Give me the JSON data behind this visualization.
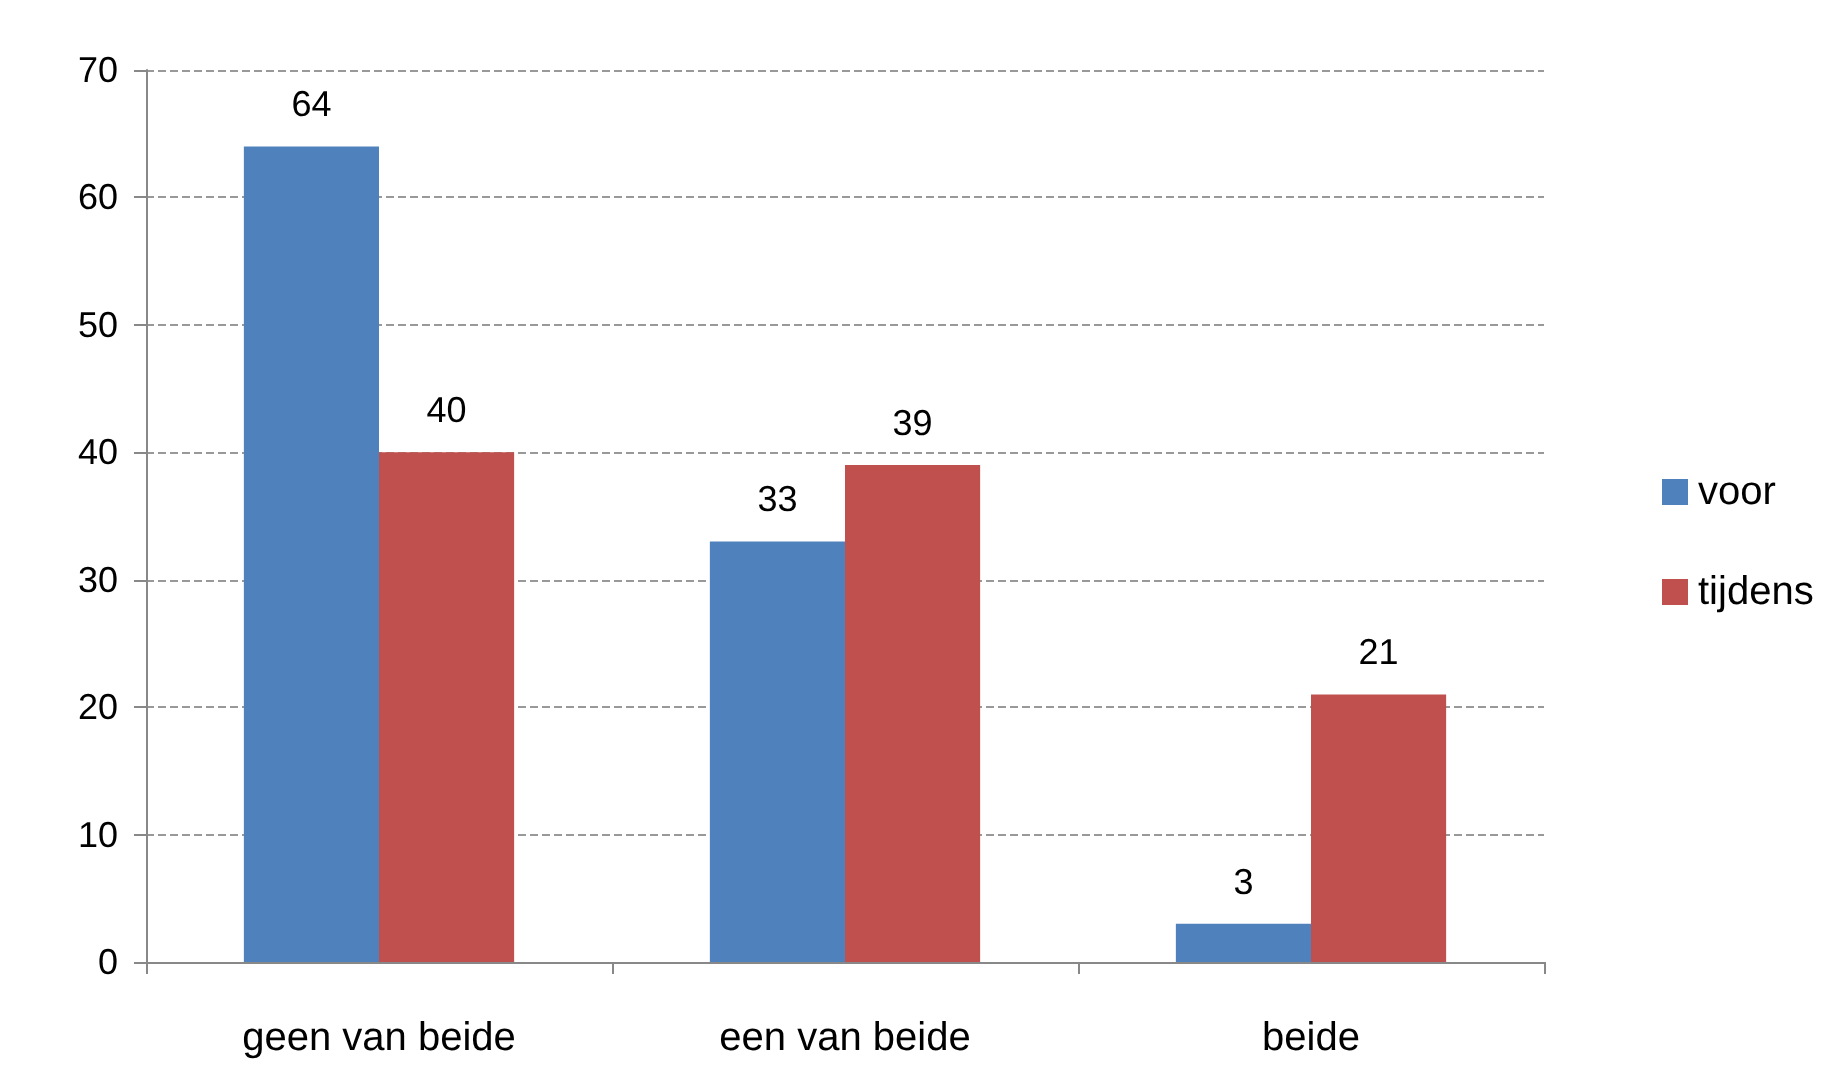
{
  "chart_data": {
    "type": "bar",
    "categories": [
      "geen van beide",
      "een van beide",
      "beide"
    ],
    "series": [
      {
        "name": "voor",
        "color": "#4f81bd",
        "values": [
          64,
          33,
          3
        ]
      },
      {
        "name": "tijdens",
        "color": "#c0504d",
        "values": [
          40,
          39,
          21
        ]
      }
    ],
    "ylim": [
      0,
      70
    ],
    "yticks": [
      0,
      10,
      20,
      30,
      40,
      50,
      60,
      70
    ],
    "grid": "y",
    "legend": "right",
    "data_labels": true
  }
}
